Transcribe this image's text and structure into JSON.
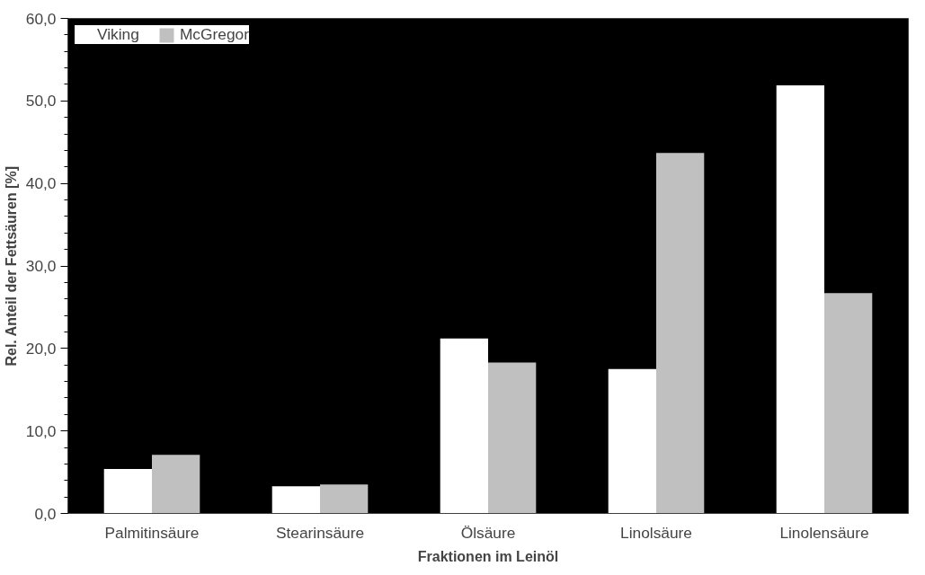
{
  "chart_data": {
    "type": "bar",
    "xlabel": "Fraktionen im Leinöl",
    "ylabel": "Rel. Anteil der Fettsäuren [%]",
    "categories": [
      "Palmitinsäure",
      "Stearinsäure",
      "Ölsäure",
      "Linolsäure",
      "Linolensäure"
    ],
    "series": [
      {
        "name": "Viking",
        "color": "#ffffff",
        "values": [
          5.4,
          3.3,
          21.2,
          17.5,
          51.9
        ]
      },
      {
        "name": "McGregor",
        "color": "#c0c0c0",
        "values": [
          7.1,
          3.5,
          18.3,
          43.7,
          26.7
        ]
      }
    ],
    "ylim": [
      0,
      60
    ],
    "yticks": [
      {
        "value": 0,
        "label": "0,0"
      },
      {
        "value": 10,
        "label": "10,0"
      },
      {
        "value": 20,
        "label": "20,0"
      },
      {
        "value": 30,
        "label": "30,0"
      },
      {
        "value": 40,
        "label": "40,0"
      },
      {
        "value": 50,
        "label": "50,0"
      },
      {
        "value": 60,
        "label": "60,0"
      }
    ],
    "grid": false,
    "legend": "top left"
  }
}
